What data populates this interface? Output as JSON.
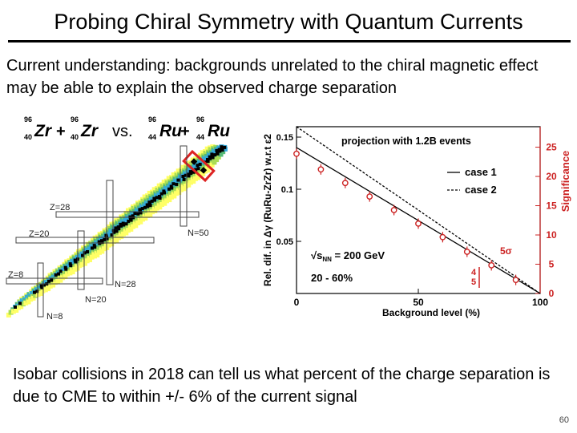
{
  "slide": {
    "title": "Probing Chiral Symmetry with Quantum Currents",
    "intro": "Current understanding: backgrounds unrelated to the chiral magnetic effect may be able to explain the observed charge separation",
    "outro": "Isobar collisions in 2018 can tell us what percent of the charge separation is due to CME to within +/- 6% of the current signal",
    "page_number": "60"
  },
  "nuclide_chart": {
    "isobar_a": {
      "mass": "96",
      "z": "40",
      "symbol": "Zr"
    },
    "isobar_b": {
      "mass": "96",
      "z": "44",
      "symbol": "Ru"
    },
    "plus": "+",
    "vs": "vs.",
    "magic_labels": [
      "Z=28",
      "N=50",
      "Z=20",
      "Z=8",
      "N=28",
      "N=20",
      "N=8"
    ],
    "band_colors": [
      "#ffff66",
      "#aadd55",
      "#55bb77",
      "#33aadd"
    ]
  },
  "chart_data": {
    "type": "line",
    "title": "projection with 1.2B events",
    "xlabel": "Background level (%)",
    "ylabel": "Rel. dif. in Δγ (RuRu-ZrZr) w.r.t ε2",
    "y2label": "Significance",
    "xlim": [
      0,
      100
    ],
    "ylim": [
      0,
      0.16
    ],
    "y2lim": [
      0,
      28.5
    ],
    "xticks": [
      0,
      50,
      100
    ],
    "yticks": [
      0.05,
      0.1,
      0.15
    ],
    "y2ticks": [
      0,
      5,
      10,
      15,
      20,
      25
    ],
    "series": [
      {
        "name": "case 1",
        "style": "solid",
        "x": [
          0,
          100
        ],
        "y": [
          0.14,
          0.0
        ]
      },
      {
        "name": "case 2",
        "style": "dashed",
        "x": [
          0,
          100
        ],
        "y": [
          0.16,
          0.0
        ]
      }
    ],
    "points": {
      "x": [
        0,
        10,
        20,
        30,
        40,
        50,
        60,
        70,
        80,
        90
      ],
      "y": [
        0.134,
        0.119,
        0.106,
        0.093,
        0.08,
        0.067,
        0.054,
        0.04,
        0.027,
        0.013
      ],
      "err": [
        0.005,
        0.005,
        0.005,
        0.005,
        0.005,
        0.005,
        0.005,
        0.005,
        0.005,
        0.005
      ]
    },
    "annotations": {
      "energy": "√s",
      "energy_sub": "NN",
      "energy_value": " = 200 GeV",
      "centrality": "20 - 60%",
      "sigma5": "5σ",
      "sigma4": "4",
      "sigma5b": "5"
    },
    "colors": {
      "data": "#cc2222",
      "right_axis": "#cc2222"
    }
  }
}
